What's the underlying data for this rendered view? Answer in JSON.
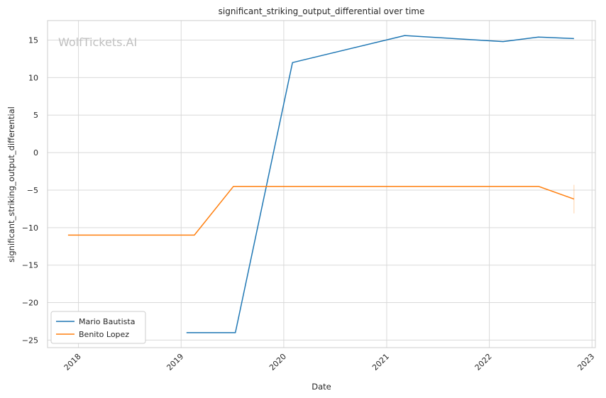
{
  "chart_data": {
    "type": "line",
    "title": "significant_striking_output_differential over time",
    "xlabel": "Date",
    "ylabel": "significant_striking_output_differential",
    "watermark": "WolfTickets.AI",
    "x_ticks": [
      "2018",
      "2019",
      "2020",
      "2021",
      "2022",
      "2023"
    ],
    "y_ticks": [
      15,
      10,
      5,
      0,
      -5,
      -10,
      -15,
      -20,
      -25
    ],
    "xlim": [
      "2017-09-13",
      "2023-01-13"
    ],
    "ylim": [
      -26,
      17.6
    ],
    "grid": true,
    "legend_position": "lower-left",
    "series": [
      {
        "name": "Mario Bautista",
        "color": "#1f77b4",
        "points": [
          {
            "x": "2019-01-20",
            "y": -24.0
          },
          {
            "x": "2019-07-13",
            "y": -24.0
          },
          {
            "x": "2020-02-01",
            "y": 12.0
          },
          {
            "x": "2021-03-06",
            "y": 15.6
          },
          {
            "x": "2022-02-19",
            "y": 14.8
          },
          {
            "x": "2022-06-25",
            "y": 15.4
          },
          {
            "x": "2022-10-29",
            "y": 15.2
          }
        ]
      },
      {
        "name": "Benito Lopez",
        "color": "#ff7f0e",
        "points": [
          {
            "x": "2017-11-25",
            "y": -11.0
          },
          {
            "x": "2019-02-17",
            "y": -11.0
          },
          {
            "x": "2019-07-06",
            "y": -4.5
          },
          {
            "x": "2022-06-25",
            "y": -4.5
          },
          {
            "x": "2022-10-29",
            "y": -6.2
          }
        ],
        "error_bar": {
          "x": "2022-10-29",
          "low": -8.1,
          "high": -4.3
        }
      }
    ]
  }
}
